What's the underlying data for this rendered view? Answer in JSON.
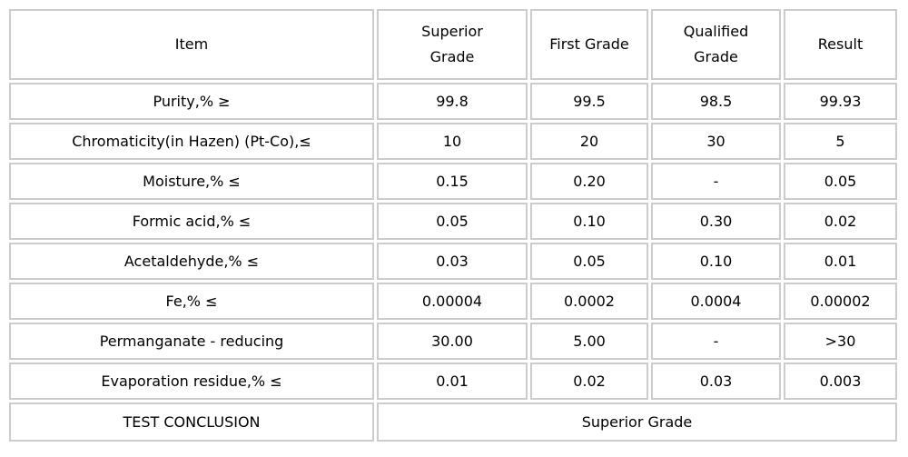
{
  "table": {
    "headers": [
      "Item",
      "Superior\nGrade",
      "First Grade",
      "Qualified\nGrade",
      "Result"
    ],
    "rows": [
      [
        "Purity,% ≥",
        "99.8",
        "99.5",
        "98.5",
        "99.93"
      ],
      [
        "Chromaticity(in Hazen) (Pt-Co),≤",
        "10",
        "20",
        "30",
        "5"
      ],
      [
        "Moisture,% ≤",
        "0.15",
        "0.20",
        "-",
        "0.05"
      ],
      [
        "Formic acid,% ≤",
        "0.05",
        "0.10",
        "0.30",
        "0.02"
      ],
      [
        "Acetaldehyde,% ≤",
        "0.03",
        "0.05",
        "0.10",
        "0.01"
      ],
      [
        "Fe,% ≤",
        "0.00004",
        "0.0002",
        "0.0004",
        "0.00002"
      ],
      [
        "Permanganate - reducing",
        "30.00",
        "5.00",
        "-",
        ">30"
      ],
      [
        "Evaporation residue,% ≤",
        "0.01",
        "0.02",
        "0.03",
        "0.003"
      ]
    ],
    "conclusion": {
      "label": "TEST CONCLUSION",
      "value": "Superior Grade"
    },
    "colors": {
      "border": "#cccccc",
      "text": "#000000",
      "background": "#ffffff"
    }
  }
}
